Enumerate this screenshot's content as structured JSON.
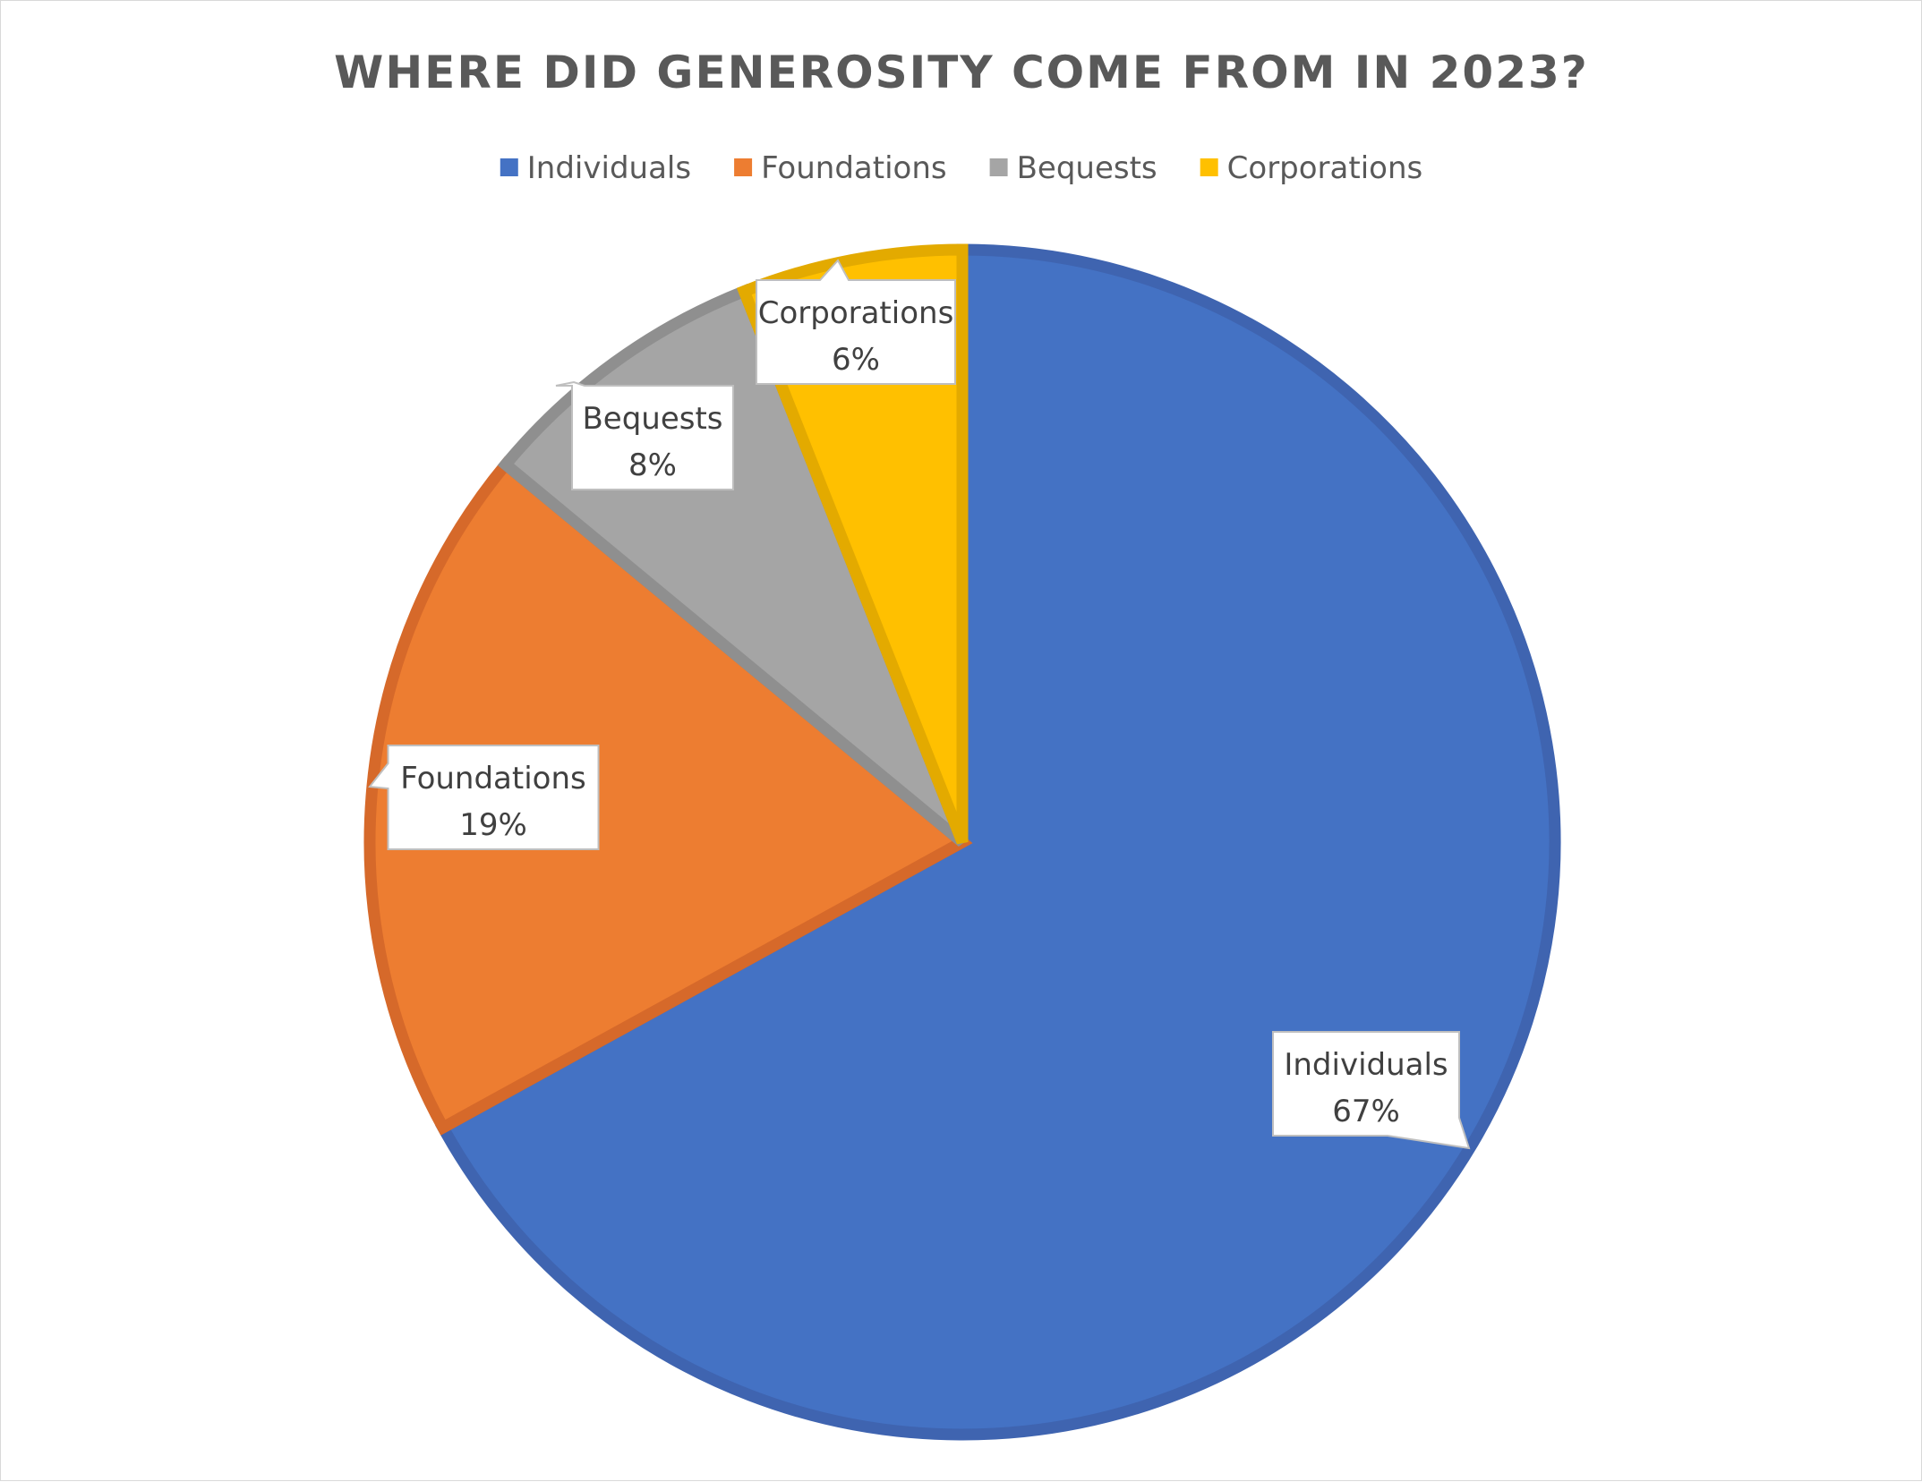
{
  "chart_data": {
    "type": "pie",
    "title": "WHERE DID GENEROSITY COME FROM IN 2023?",
    "legend_position": "top",
    "slices": [
      {
        "label": "Individuals",
        "value": 67,
        "value_label": "67%",
        "color": "#4472C4",
        "edge_color": "#3F64B0"
      },
      {
        "label": "Foundations",
        "value": 19,
        "value_label": "19%",
        "color": "#ED7D31",
        "edge_color": "#D6692A"
      },
      {
        "label": "Bequests",
        "value": 8,
        "value_label": "8%",
        "color": "#A5A5A5",
        "edge_color": "#8F8F8F"
      },
      {
        "label": "Corporations",
        "value": 6,
        "value_label": "6%",
        "color": "#FFC000",
        "edge_color": "#E3AA00"
      }
    ]
  }
}
